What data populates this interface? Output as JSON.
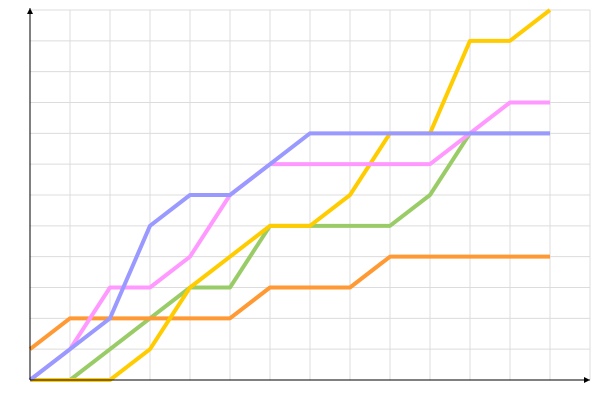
{
  "chart_data": {
    "type": "line",
    "x": [
      0,
      1,
      2,
      3,
      4,
      5,
      6,
      7,
      8,
      9,
      10,
      11,
      12,
      13
    ],
    "series": [
      {
        "color": "#99cc66",
        "values": [
          0,
          0,
          1,
          2,
          3,
          3,
          5,
          5,
          5,
          5,
          6,
          8,
          8,
          8
        ]
      },
      {
        "color": "#ff9933",
        "values": [
          1,
          2,
          2,
          2,
          2,
          2,
          3,
          3,
          3,
          4,
          4,
          4,
          4,
          4
        ]
      },
      {
        "color": "#ffcc00",
        "values": [
          0,
          0,
          0,
          1,
          3,
          4,
          5,
          5,
          6,
          8,
          8,
          11,
          11,
          12
        ]
      },
      {
        "color": "#ff99ff",
        "values": [
          0,
          1,
          3,
          3,
          4,
          6,
          7,
          7,
          7,
          7,
          7,
          8,
          9,
          9
        ]
      },
      {
        "color": "#9999ff",
        "values": [
          0,
          1,
          2,
          5,
          6,
          6,
          7,
          8,
          8,
          8,
          8,
          8,
          8,
          8
        ]
      }
    ],
    "xlim": [
      0,
      14
    ],
    "ylim": [
      0,
      12
    ],
    "xticks": [
      0,
      1,
      2,
      3,
      4,
      5,
      6,
      7,
      8,
      9,
      10,
      11,
      12,
      13,
      14
    ],
    "yticks": [
      0,
      1,
      2,
      3,
      4,
      5,
      6,
      7,
      8,
      9,
      10,
      11,
      12
    ],
    "grid": true
  }
}
